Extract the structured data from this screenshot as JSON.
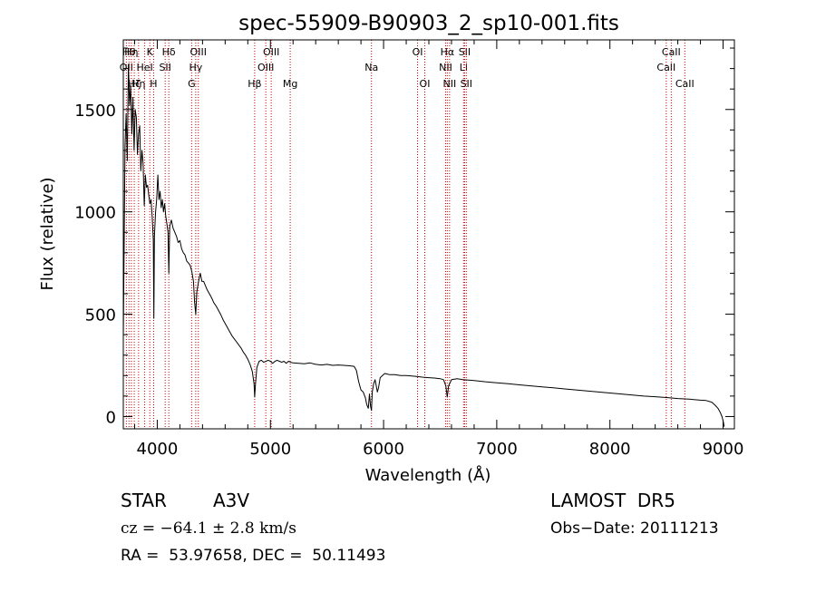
{
  "chart_data": {
    "type": "line",
    "title": "spec-55909-B90903_2_sp10-001.fits",
    "xlabel": "Wavelength (Å)",
    "ylabel": "Flux (relative)",
    "xlim": [
      3700,
      9100
    ],
    "ylim": [
      -60,
      1840
    ],
    "x_ticks": [
      4000,
      5000,
      6000,
      7000,
      8000,
      9000
    ],
    "y_ticks": [
      0,
      500,
      1000,
      1500
    ],
    "grid": false,
    "legend": "none",
    "series": [
      {
        "name": "",
        "color": "#000000",
        "points": [
          [
            3700,
            380
          ],
          [
            3715,
            1320
          ],
          [
            3725,
            1480
          ],
          [
            3735,
            1250
          ],
          [
            3745,
            1720
          ],
          [
            3755,
            1520
          ],
          [
            3765,
            1620
          ],
          [
            3775,
            1380
          ],
          [
            3785,
            1560
          ],
          [
            3795,
            1300
          ],
          [
            3805,
            1500
          ],
          [
            3815,
            1460
          ],
          [
            3825,
            1280
          ],
          [
            3835,
            1380
          ],
          [
            3845,
            1420
          ],
          [
            3855,
            1200
          ],
          [
            3865,
            1300
          ],
          [
            3875,
            1240
          ],
          [
            3885,
            1030
          ],
          [
            3895,
            1180
          ],
          [
            3905,
            1120
          ],
          [
            3915,
            1130
          ],
          [
            3925,
            1080
          ],
          [
            3935,
            1040
          ],
          [
            3945,
            1060
          ],
          [
            3955,
            980
          ],
          [
            3965,
            860
          ],
          [
            3970,
            480
          ],
          [
            3975,
            880
          ],
          [
            3985,
            1000
          ],
          [
            3995,
            1060
          ],
          [
            4005,
            1180
          ],
          [
            4015,
            1060
          ],
          [
            4025,
            1100
          ],
          [
            4035,
            1020
          ],
          [
            4045,
            1060
          ],
          [
            4055,
            1000
          ],
          [
            4065,
            1040
          ],
          [
            4075,
            980
          ],
          [
            4085,
            940
          ],
          [
            4095,
            900
          ],
          [
            4102,
            700
          ],
          [
            4110,
            930
          ],
          [
            4125,
            960
          ],
          [
            4140,
            920
          ],
          [
            4155,
            900
          ],
          [
            4170,
            880
          ],
          [
            4185,
            850
          ],
          [
            4200,
            860
          ],
          [
            4215,
            820
          ],
          [
            4230,
            800
          ],
          [
            4245,
            790
          ],
          [
            4260,
            760
          ],
          [
            4275,
            750
          ],
          [
            4290,
            740
          ],
          [
            4305,
            710
          ],
          [
            4320,
            660
          ],
          [
            4330,
            560
          ],
          [
            4340,
            500
          ],
          [
            4350,
            610
          ],
          [
            4365,
            660
          ],
          [
            4380,
            700
          ],
          [
            4395,
            660
          ],
          [
            4410,
            660
          ],
          [
            4425,
            640
          ],
          [
            4440,
            620
          ],
          [
            4460,
            600
          ],
          [
            4480,
            580
          ],
          [
            4500,
            555
          ],
          [
            4520,
            540
          ],
          [
            4540,
            520
          ],
          [
            4560,
            500
          ],
          [
            4580,
            475
          ],
          [
            4600,
            455
          ],
          [
            4620,
            435
          ],
          [
            4640,
            415
          ],
          [
            4660,
            395
          ],
          [
            4680,
            380
          ],
          [
            4700,
            365
          ],
          [
            4720,
            350
          ],
          [
            4740,
            335
          ],
          [
            4760,
            315
          ],
          [
            4780,
            300
          ],
          [
            4800,
            280
          ],
          [
            4820,
            255
          ],
          [
            4840,
            220
          ],
          [
            4855,
            160
          ],
          [
            4861,
            95
          ],
          [
            4868,
            160
          ],
          [
            4880,
            240
          ],
          [
            4900,
            270
          ],
          [
            4920,
            275
          ],
          [
            4940,
            265
          ],
          [
            4960,
            270
          ],
          [
            4980,
            275
          ],
          [
            5000,
            270
          ],
          [
            5020,
            260
          ],
          [
            5040,
            270
          ],
          [
            5060,
            275
          ],
          [
            5080,
            270
          ],
          [
            5100,
            265
          ],
          [
            5120,
            270
          ],
          [
            5140,
            260
          ],
          [
            5160,
            270
          ],
          [
            5180,
            265
          ],
          [
            5200,
            262
          ],
          [
            5250,
            260
          ],
          [
            5300,
            258
          ],
          [
            5350,
            262
          ],
          [
            5400,
            255
          ],
          [
            5450,
            252
          ],
          [
            5500,
            255
          ],
          [
            5550,
            250
          ],
          [
            5600,
            252
          ],
          [
            5650,
            250
          ],
          [
            5700,
            248
          ],
          [
            5740,
            245
          ],
          [
            5760,
            225
          ],
          [
            5780,
            170
          ],
          [
            5800,
            130
          ],
          [
            5820,
            120
          ],
          [
            5840,
            90
          ],
          [
            5850,
            60
          ],
          [
            5865,
            40
          ],
          [
            5875,
            110
          ],
          [
            5885,
            50
          ],
          [
            5893,
            30
          ],
          [
            5900,
            120
          ],
          [
            5912,
            160
          ],
          [
            5925,
            180
          ],
          [
            5935,
            150
          ],
          [
            5945,
            120
          ],
          [
            5955,
            140
          ],
          [
            5970,
            190
          ],
          [
            5990,
            200
          ],
          [
            6010,
            210
          ],
          [
            6030,
            208
          ],
          [
            6050,
            205
          ],
          [
            6100,
            205
          ],
          [
            6150,
            200
          ],
          [
            6200,
            200
          ],
          [
            6250,
            198
          ],
          [
            6300,
            195
          ],
          [
            6350,
            192
          ],
          [
            6400,
            190
          ],
          [
            6450,
            188
          ],
          [
            6500,
            185
          ],
          [
            6530,
            180
          ],
          [
            6550,
            150
          ],
          [
            6563,
            95
          ],
          [
            6575,
            150
          ],
          [
            6600,
            180
          ],
          [
            6650,
            185
          ],
          [
            6700,
            180
          ],
          [
            6750,
            178
          ],
          [
            6800,
            176
          ],
          [
            6900,
            170
          ],
          [
            7000,
            165
          ],
          [
            7100,
            160
          ],
          [
            7200,
            155
          ],
          [
            7300,
            150
          ],
          [
            7400,
            145
          ],
          [
            7500,
            140
          ],
          [
            7600,
            135
          ],
          [
            7700,
            130
          ],
          [
            7800,
            125
          ],
          [
            7900,
            120
          ],
          [
            8000,
            115
          ],
          [
            8100,
            110
          ],
          [
            8200,
            105
          ],
          [
            8300,
            100
          ],
          [
            8400,
            97
          ],
          [
            8500,
            93
          ],
          [
            8600,
            88
          ],
          [
            8700,
            85
          ],
          [
            8800,
            80
          ],
          [
            8850,
            78
          ],
          [
            8900,
            70
          ],
          [
            8930,
            55
          ],
          [
            8955,
            40
          ],
          [
            8975,
            20
          ],
          [
            8990,
            0
          ],
          [
            9000,
            -20
          ],
          [
            9010,
            -50
          ]
        ]
      }
    ],
    "line_color": "#cc0000",
    "line_markers": [
      {
        "x": 3727,
        "row": 1,
        "label": "OII"
      },
      {
        "x": 3750,
        "row": 0,
        "label": "Hθ"
      },
      {
        "x": 3771,
        "row": 0,
        "label": "Hη"
      },
      {
        "x": 3797,
        "row": 2,
        "label": "Hζ"
      },
      {
        "x": 3835,
        "row": 2,
        "label": "Hη"
      },
      {
        "x": 3889,
        "row": 1,
        "label": "HeI"
      },
      {
        "x": 3934,
        "row": 0,
        "label": "K"
      },
      {
        "x": 3968,
        "row": 2,
        "label": "H"
      },
      {
        "x": 4070,
        "row": 1,
        "label": "SII"
      },
      {
        "x": 4102,
        "row": 0,
        "label": "Hδ"
      },
      {
        "x": 4304,
        "row": 2,
        "label": "G"
      },
      {
        "x": 4340,
        "row": 1,
        "label": "Hγ"
      },
      {
        "x": 4363,
        "row": 0,
        "label": "OIII"
      },
      {
        "x": 4861,
        "row": 2,
        "label": "Hβ"
      },
      {
        "x": 4959,
        "row": 1,
        "label": "OIII"
      },
      {
        "x": 5007,
        "row": 0,
        "label": "OIII"
      },
      {
        "x": 5175,
        "row": 2,
        "label": "Mg"
      },
      {
        "x": 5893,
        "row": 1,
        "label": "Na"
      },
      {
        "x": 6300,
        "row": 0,
        "label": "OI"
      },
      {
        "x": 6364,
        "row": 2,
        "label": "OI"
      },
      {
        "x": 6548,
        "row": 1,
        "label": "NII"
      },
      {
        "x": 6563,
        "row": 0,
        "label": "Hα"
      },
      {
        "x": 6583,
        "row": 2,
        "label": "NII"
      },
      {
        "x": 6707,
        "row": 1,
        "label": "Li"
      },
      {
        "x": 6716,
        "row": 0,
        "label": "SII"
      },
      {
        "x": 6731,
        "row": 2,
        "label": "SII"
      },
      {
        "x": 8498,
        "row": 1,
        "label": "CaII"
      },
      {
        "x": 8542,
        "row": 0,
        "label": "CaII"
      },
      {
        "x": 8662,
        "row": 2,
        "label": "CaII"
      }
    ]
  },
  "info": {
    "object_class": "STAR",
    "subclass": "A3V",
    "survey": "LAMOST  DR5",
    "cz": "cz = −64.1 ± 2.8 km/s",
    "obs_date": "Obs−Date: 20111213",
    "coords": "RA =  53.97658, DEC =  50.11493"
  }
}
